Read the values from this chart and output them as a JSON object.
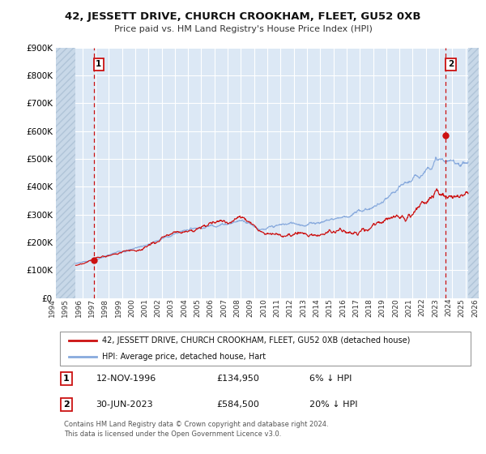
{
  "title": "42, JESSETT DRIVE, CHURCH CROOKHAM, FLEET, GU52 0XB",
  "subtitle": "Price paid vs. HM Land Registry's House Price Index (HPI)",
  "bg_color": "#ffffff",
  "plot_bg_color": "#dce8f5",
  "grid_color": "#ffffff",
  "hatch_color": "#c8d8e8",
  "line1_color": "#cc1111",
  "line2_color": "#88aadd",
  "marker1_date": 1996.87,
  "marker1_value": 134950,
  "marker2_date": 2023.5,
  "marker2_value": 584500,
  "xmin": 1994.0,
  "xmax": 2026.0,
  "ymin": 0,
  "ymax": 900000,
  "hatch_left_end": 1995.5,
  "hatch_right_start": 2025.2,
  "yticks": [
    0,
    100000,
    200000,
    300000,
    400000,
    500000,
    600000,
    700000,
    800000,
    900000
  ],
  "ytick_labels": [
    "£0",
    "£100K",
    "£200K",
    "£300K",
    "£400K",
    "£500K",
    "£600K",
    "£700K",
    "£800K",
    "£900K"
  ],
  "legend_line1": "42, JESSETT DRIVE, CHURCH CROOKHAM, FLEET, GU52 0XB (detached house)",
  "legend_line2": "HPI: Average price, detached house, Hart",
  "table_entries": [
    {
      "num": "1",
      "date": "12-NOV-1996",
      "price": "£134,950",
      "hpi": "6% ↓ HPI"
    },
    {
      "num": "2",
      "date": "30-JUN-2023",
      "price": "£584,500",
      "hpi": "20% ↓ HPI"
    }
  ],
  "footnote": "Contains HM Land Registry data © Crown copyright and database right 2024.\nThis data is licensed under the Open Government Licence v3.0."
}
